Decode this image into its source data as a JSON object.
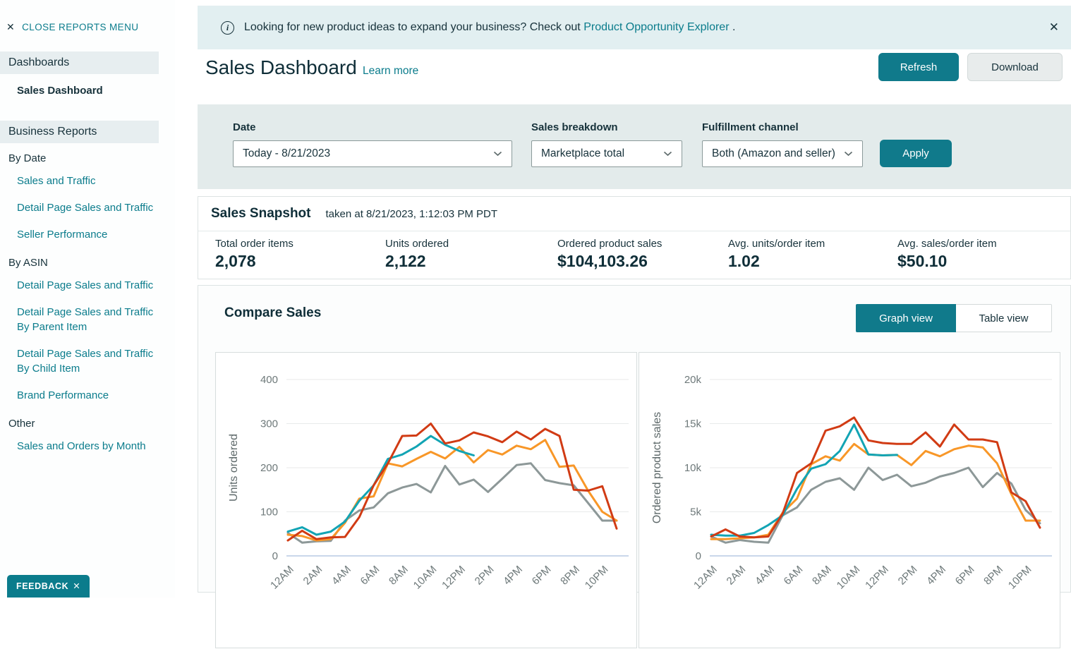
{
  "colors": {
    "teal": "#107a8b",
    "dark_navy": "#0f2e38",
    "banner_bg": "#e2eff1",
    "filter_bg": "#e3ebeb"
  },
  "sidebar": {
    "close_icon": "✕",
    "close_label": "CLOSE REPORTS MENU",
    "groups": [
      {
        "header": "Dashboards",
        "items": [
          "Sales Dashboard"
        ]
      },
      {
        "header": "Business Reports",
        "items": []
      },
      {
        "header": "By Date",
        "items": [
          "Sales and Traffic",
          "Detail Page Sales and Traffic",
          "Seller Performance"
        ]
      },
      {
        "header": "By ASIN",
        "items": [
          "Detail Page Sales and Traffic",
          "Detail Page Sales and Traffic By Parent Item",
          "Detail Page Sales and Traffic By Child Item",
          "Brand Performance"
        ]
      },
      {
        "header": "Other",
        "items": [
          "Sales and Orders by Month"
        ]
      }
    ],
    "feedback_label": "FEEDBACK",
    "feedback_close_icon": "✕"
  },
  "banner": {
    "info_icon": "i",
    "text_before_link": "Looking for new product ideas to expand your business? Check out",
    "link_text": "Product Opportunity Explorer",
    "text_after_link": ".",
    "close_icon": "✕"
  },
  "header": {
    "title": "Sales Dashboard",
    "learn_more": "Learn more",
    "refresh_label": "Refresh",
    "download_label": "Download"
  },
  "filters": {
    "date": {
      "label": "Date",
      "value": "Today - 8/21/2023"
    },
    "sales_breakdown": {
      "label": "Sales breakdown",
      "value": "Marketplace total"
    },
    "fulfillment_channel": {
      "label": "Fulfillment channel",
      "value": "Both (Amazon and seller)"
    },
    "apply_label": "Apply"
  },
  "snapshot": {
    "title": "Sales Snapshot",
    "taken_at": "taken at 8/21/2023, 1:12:03 PM PDT",
    "metrics": [
      {
        "label": "Total order items",
        "value": "2,078"
      },
      {
        "label": "Units ordered",
        "value": "2,122"
      },
      {
        "label": "Ordered product sales",
        "value": "$104,103.26"
      },
      {
        "label": "Avg. units/order item",
        "value": "1.02"
      },
      {
        "label": "Avg. sales/order item",
        "value": "$50.10"
      }
    ]
  },
  "compare": {
    "title": "Compare Sales",
    "graph_view_label": "Graph view",
    "table_view_label": "Table view"
  },
  "chart_data": [
    {
      "type": "line",
      "ylabel": "Units ordered",
      "ylim": [
        0,
        400
      ],
      "yticks": [
        0,
        100,
        200,
        300,
        400
      ],
      "ytick_labels": [
        "0",
        "100",
        "200",
        "300",
        "400"
      ],
      "x_hours": 24,
      "x_tick_labels": [
        "12AM",
        "2AM",
        "4AM",
        "6AM",
        "8AM",
        "10AM",
        "12PM",
        "2PM",
        "4PM",
        "6PM",
        "8PM",
        "10PM"
      ],
      "grid": true,
      "legend": "not visible (cropped)",
      "series": [
        {
          "name": "series-gray",
          "color": "#8d9898",
          "values": [
            52,
            30,
            33,
            34,
            80,
            103,
            110,
            142,
            155,
            163,
            144,
            204,
            162,
            173,
            145,
            175,
            206,
            210,
            172,
            165,
            160,
            120,
            80,
            80
          ]
        },
        {
          "name": "series-orange",
          "color": "#f89728",
          "values": [
            48,
            45,
            35,
            38,
            75,
            130,
            135,
            210,
            203,
            220,
            236,
            221,
            247,
            212,
            240,
            230,
            250,
            242,
            263,
            202,
            205,
            148,
            100,
            80
          ]
        },
        {
          "name": "series-teal-today",
          "color": "#12a4b4",
          "values": [
            55,
            65,
            48,
            55,
            78,
            125,
            160,
            220,
            230,
            248,
            272,
            252,
            238,
            228
          ]
        },
        {
          "name": "series-red",
          "color": "#d13b14",
          "values": [
            35,
            57,
            38,
            42,
            43,
            88,
            160,
            210,
            272,
            273,
            300,
            255,
            262,
            280,
            271,
            258,
            282,
            264,
            288,
            272,
            150,
            148,
            158,
            62
          ]
        }
      ]
    },
    {
      "type": "line",
      "ylabel": "Ordered product sales",
      "ylim": [
        0,
        20000
      ],
      "yticks": [
        0,
        5000,
        10000,
        15000,
        20000
      ],
      "ytick_labels": [
        "0",
        "5k",
        "10k",
        "15k",
        "20k"
      ],
      "x_hours": 24,
      "x_tick_labels": [
        "12AM",
        "2AM",
        "4AM",
        "6AM",
        "8AM",
        "10AM",
        "12PM",
        "2PM",
        "4PM",
        "6PM",
        "8PM",
        "10PM"
      ],
      "grid": true,
      "legend": "not visible (cropped)",
      "series": [
        {
          "name": "series-gray",
          "color": "#8d9898",
          "values": [
            2200,
            1500,
            1800,
            1600,
            1500,
            4600,
            5500,
            7500,
            8400,
            8800,
            7500,
            10000,
            8600,
            9200,
            7900,
            8300,
            9000,
            9400,
            10000,
            7800,
            9400,
            8200,
            5200,
            3700
          ]
        },
        {
          "name": "series-orange",
          "color": "#f89728",
          "values": [
            1900,
            1900,
            2000,
            2100,
            2400,
            4900,
            6500,
            10400,
            11300,
            10800,
            12700,
            11500,
            11400,
            11450,
            10300,
            11900,
            11300,
            12100,
            12500,
            12300,
            10500,
            7000,
            4000,
            4000
          ]
        },
        {
          "name": "series-teal-today",
          "color": "#12a4b4",
          "values": [
            2400,
            2300,
            2300,
            2600,
            3500,
            4600,
            7600,
            9900,
            10400,
            11900,
            14900,
            11500,
            11400,
            11450
          ]
        },
        {
          "name": "series-red",
          "color": "#d13b14",
          "values": [
            2200,
            3000,
            2200,
            2100,
            2200,
            4800,
            9400,
            10500,
            14200,
            14700,
            15700,
            13100,
            12800,
            12700,
            12700,
            14000,
            12400,
            14900,
            13200,
            13200,
            12900,
            7200,
            6200,
            3200
          ]
        }
      ]
    }
  ]
}
